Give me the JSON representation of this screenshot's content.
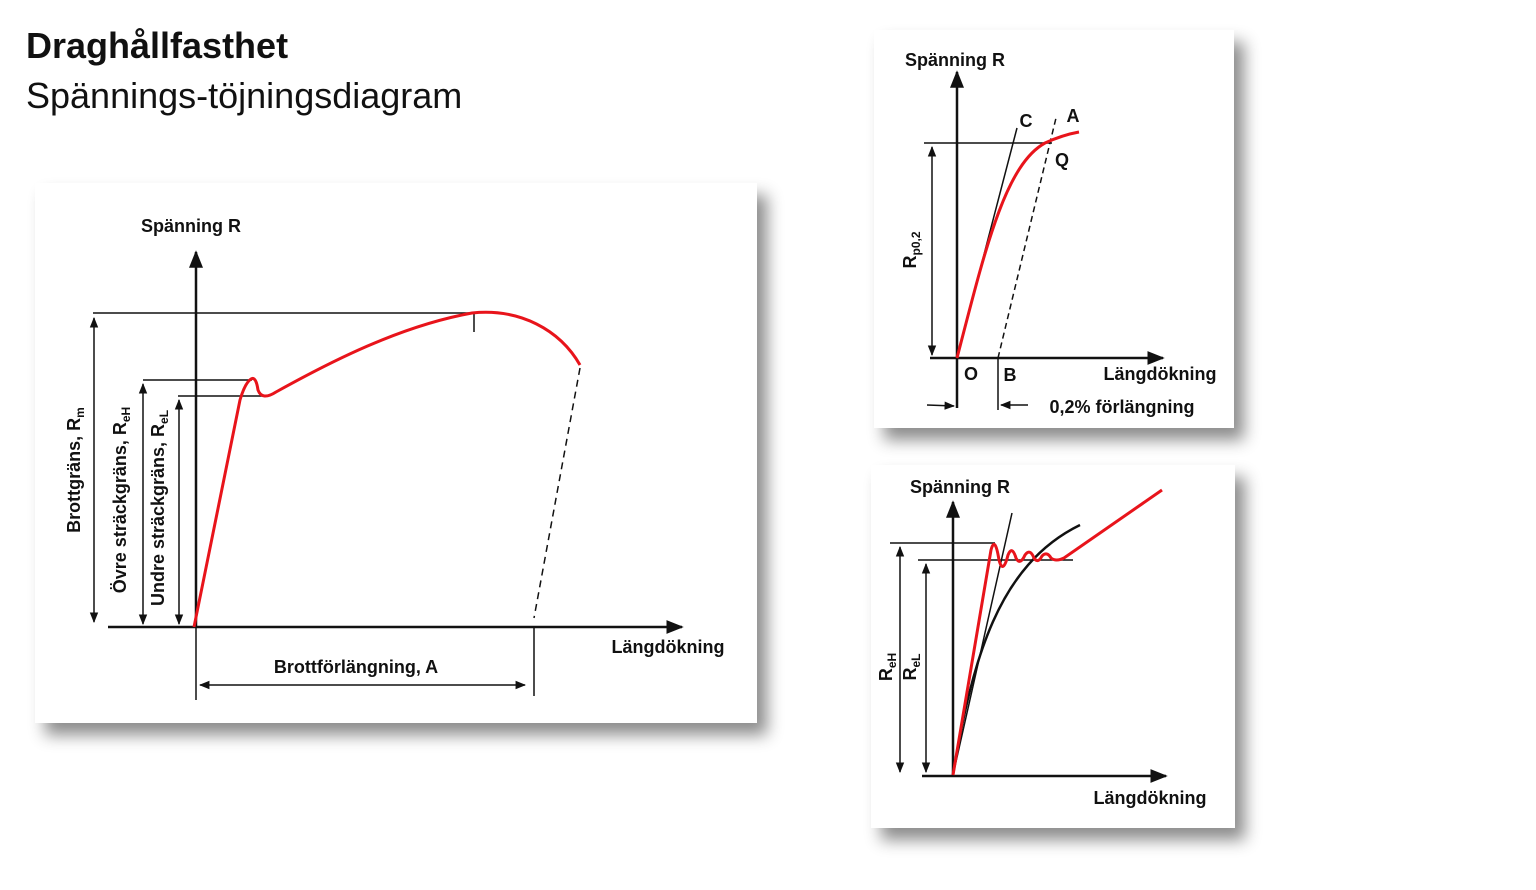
{
  "header": {
    "title": "Draghållfasthet",
    "subtitle": "Spännings-töjningsdiagram"
  },
  "main_diagram": {
    "y_axis_label": "Spänning R",
    "x_axis_label": "Längdökning",
    "tensile_strength": {
      "text": "Brottgräns, R",
      "sub": "m"
    },
    "upper_yield": {
      "text": "Övre sträckgräns, R",
      "sub": "eH"
    },
    "lower_yield": {
      "text": "Undre sträckgräns, R",
      "sub": "eL"
    },
    "elongation": "Brottförlängning, A"
  },
  "proof_diagram": {
    "y_axis_label": "Spänning R",
    "x_axis_label": "Längdökning",
    "point_c": "C",
    "point_a": "A",
    "point_q": "Q",
    "point_o": "O",
    "point_b": "B",
    "proof_stress": {
      "text": "R",
      "sub": "p0,2"
    },
    "offset_label": "0,2% förlängning"
  },
  "yield_diagram": {
    "y_axis_label": "Spänning R",
    "x_axis_label": "Längdökning",
    "upper_yield": {
      "text": "R",
      "sub": "eH"
    },
    "lower_yield": {
      "text": "R",
      "sub": "eL"
    }
  }
}
